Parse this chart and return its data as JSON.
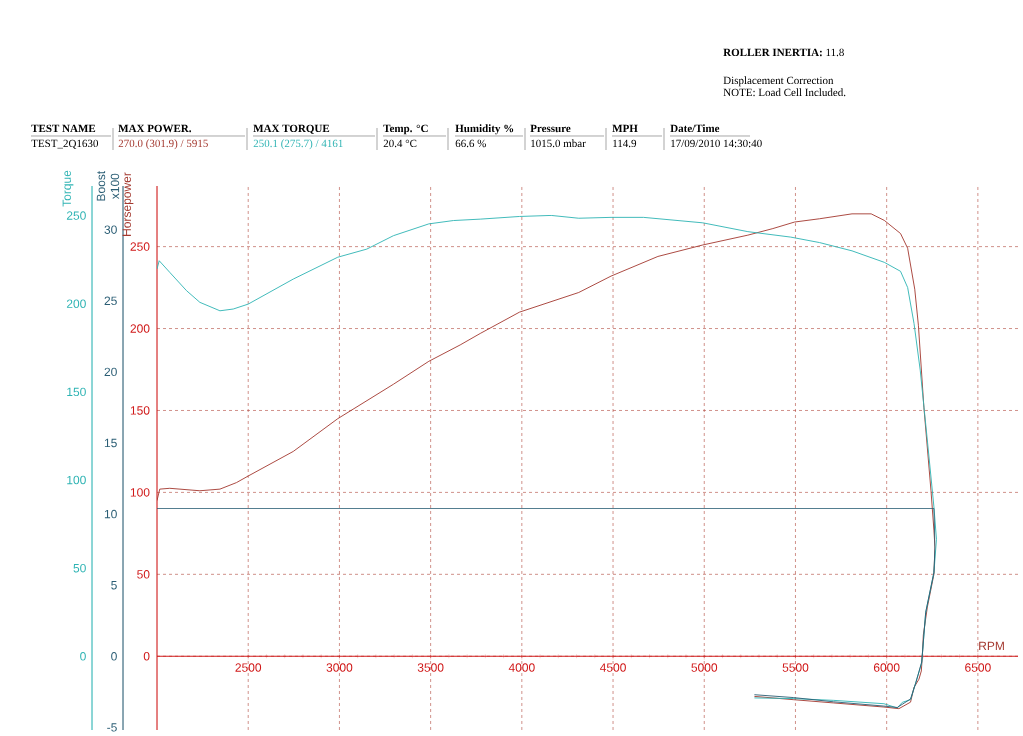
{
  "chart_data": {
    "type": "line",
    "xlabel": "RPM",
    "ylabel": "Horsepower",
    "y2label": "Torque",
    "y3label": "Boost x100",
    "xlim": [
      2000,
      6720
    ],
    "xticks": [
      2500,
      3000,
      3500,
      4000,
      4500,
      5000,
      5500,
      6000,
      6500
    ],
    "ylim": [
      -45,
      287
    ],
    "yticks": [
      0,
      50,
      100,
      150,
      200,
      250
    ],
    "y2lim": [
      -41.8,
      266.8
    ],
    "y2ticks": [
      0,
      50,
      100,
      150,
      200,
      250
    ],
    "y3lim": [
      -5.18,
      33.07
    ],
    "y3ticks": [
      -5,
      0,
      5,
      10,
      15,
      20,
      25,
      30
    ],
    "grid": true,
    "series": [
      {
        "color": "#a3372e",
        "axis": "y",
        "x": [
          2000,
          2015,
          2070,
          2235,
          2345,
          2436,
          2500,
          2747,
          2991,
          3296,
          3490,
          3662,
          3772,
          3987,
          4312,
          4489,
          4746,
          4992,
          5239,
          5376,
          5495,
          5632,
          5810,
          5915,
          5987,
          6076,
          6115,
          6154,
          6174,
          6204,
          6243,
          6259,
          6265,
          6259,
          6223,
          6201,
          6196,
          6190,
          6177,
          6150,
          6131,
          6067,
          5985,
          5710,
          5488,
          5275
        ],
        "values": [
          95,
          102,
          102.5,
          101,
          102,
          106,
          110,
          125,
          145,
          166,
          180,
          190,
          197,
          210,
          222,
          232,
          244,
          251,
          257,
          261,
          265,
          267,
          270,
          270,
          266,
          258,
          249,
          224,
          202,
          152,
          101,
          77,
          66,
          50,
          30,
          13,
          1,
          -9,
          -14,
          -19,
          -28,
          -32,
          -31,
          -28.5,
          -26.5,
          -24.5
        ]
      },
      {
        "color": "#2db3b3",
        "axis": "y2",
        "x": [
          2000,
          2012,
          2070,
          2162,
          2235,
          2345,
          2418,
          2500,
          2747,
          2991,
          3150,
          3296,
          3490,
          3625,
          3772,
          3987,
          4161,
          4312,
          4489,
          4667,
          4992,
          5239,
          5474,
          5632,
          5810,
          5987,
          6076,
          6115,
          6150,
          6184,
          6224,
          6259,
          6273,
          6259,
          6214,
          6192,
          6159,
          6131,
          6086,
          6058,
          5985,
          5710,
          5488,
          5275
        ],
        "values": [
          219.7,
          224.4,
          217.8,
          207.4,
          200.8,
          196,
          197,
          199.8,
          214,
          226.4,
          231,
          238.6,
          245.3,
          247.2,
          248,
          249.5,
          250.1,
          248.5,
          249,
          249,
          245.9,
          240.9,
          237.8,
          234.7,
          230,
          223.5,
          218.4,
          209.2,
          188.8,
          162.3,
          121.5,
          84.8,
          66.4,
          47.4,
          24.7,
          -3.8,
          -15.1,
          -24.6,
          -26.1,
          -29.3,
          -26.9,
          -25,
          -24,
          -23.6
        ]
      },
      {
        "color": "#2a5d74",
        "axis": "y3",
        "x": [
          2000,
          6259,
          6265,
          6259,
          6214,
          6192,
          6159,
          6131,
          6058,
          5985,
          5710,
          5488,
          5275
        ],
        "values": [
          10.4,
          10.4,
          7.7,
          5.9,
          3.1,
          -0.4,
          -1.9,
          -3.0,
          -3.6,
          -3.5,
          -3.2,
          -2.9,
          -2.7
        ]
      }
    ],
    "annotations": [
      "**ROLLER INERTIA:**  11.8",
      "Displacement Correction",
      "NOTE: Load Cell Included.",
      "TEST NAME",
      "TEST_2Q1630",
      "MAX POWER.",
      "270.0 (301.9) / 5915",
      "MAX TORQUE",
      "250.1 (275.7) / 4161",
      "Temp. °C",
      "20.4 °C",
      "Humidity %",
      "66.6 %",
      "Pressure",
      "1015.0 mbar",
      "MPH",
      "114.9",
      "Date/Time",
      "17/09/2010 14:30:40"
    ]
  }
}
